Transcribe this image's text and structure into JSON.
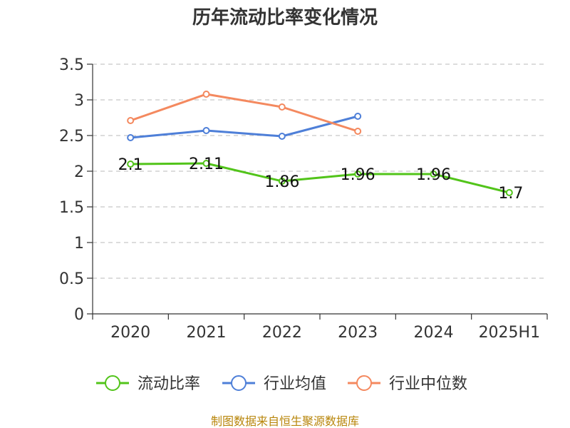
{
  "chart_data": {
    "type": "line",
    "title": "历年流动比率变化情况",
    "categories": [
      "2020",
      "2021",
      "2022",
      "2023",
      "2024",
      "2025H1"
    ],
    "ylim": [
      0,
      3.5
    ],
    "yticks": [
      "0",
      "0.5",
      "1",
      "1.5",
      "2",
      "2.5",
      "3",
      "3.5"
    ],
    "ytick_values": [
      0,
      0.5,
      1,
      1.5,
      2,
      2.5,
      3,
      3.5
    ],
    "grid": true,
    "legend_position": "bottom",
    "series": [
      {
        "name": "流动比率",
        "color": "#52c41a",
        "values": [
          2.1,
          2.11,
          1.86,
          1.96,
          1.96,
          1.7
        ],
        "labels": [
          "2.1",
          "2.11",
          "1.86",
          "1.96",
          "1.96",
          "1.7"
        ]
      },
      {
        "name": "行业均值",
        "color": "#4e7fd8",
        "values": [
          2.47,
          2.57,
          2.49,
          2.77,
          null,
          null
        ]
      },
      {
        "name": "行业中位数",
        "color": "#f4895f",
        "values": [
          2.71,
          3.08,
          2.9,
          2.56,
          null,
          null
        ]
      }
    ],
    "source": "制图数据来自恒生聚源数据库"
  }
}
